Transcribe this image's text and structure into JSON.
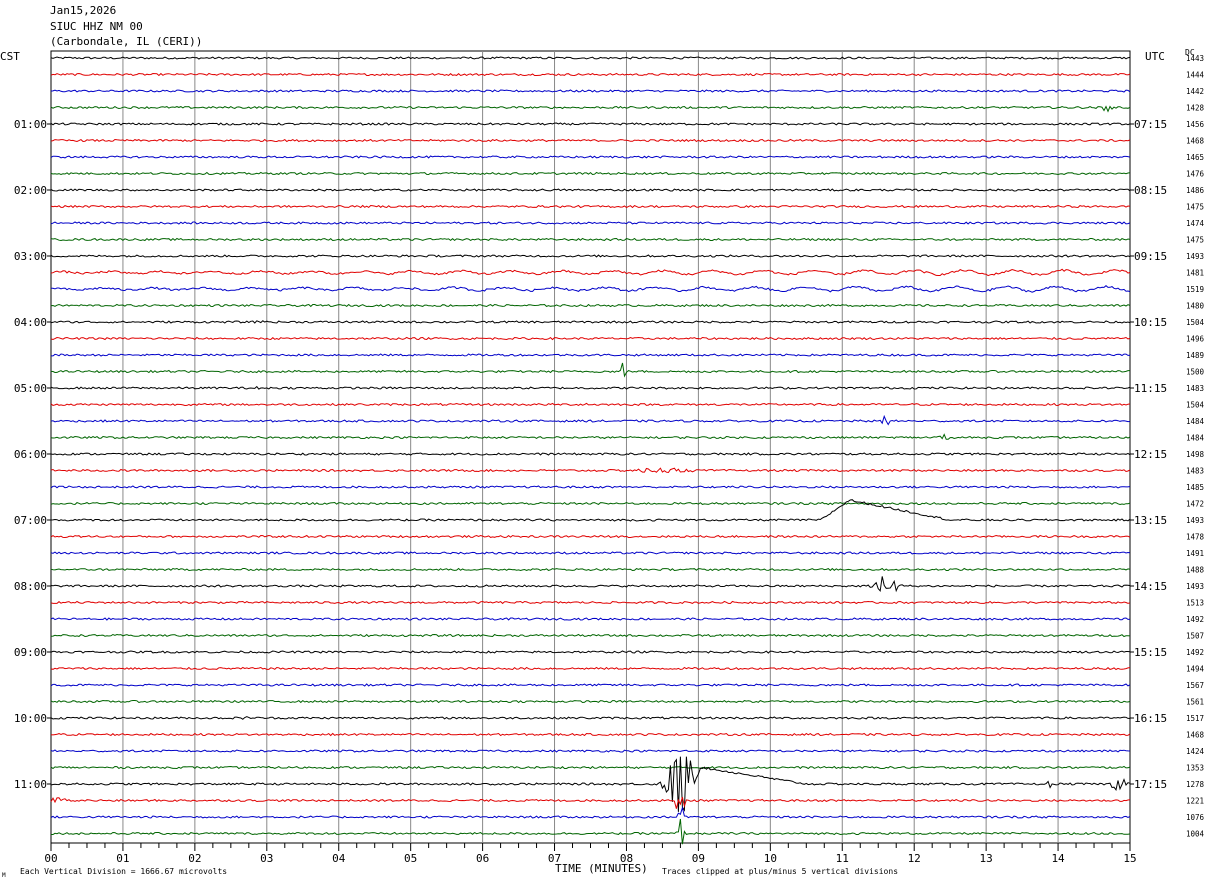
{
  "header": {
    "date": "Jan15,2026",
    "station": "SIUC HHZ NM 00",
    "location": "(Carbondale, IL (CERI))"
  },
  "left_axis_title": "CST",
  "right_axis_title": "UTC",
  "dc_title": "DC",
  "footer": {
    "scale_note": "Each Vertical Division = 1666.67 microvolts",
    "xlabel": "TIME (MINUTES)",
    "clip_note": "Traces clipped at plus/minus 5 vertical divisions",
    "corner_mark": "M"
  },
  "colors": {
    "trace_cycle": [
      "#000000",
      "#e00000",
      "#0000c8",
      "#006400"
    ],
    "grid": "#888888"
  },
  "chart_data": {
    "type": "line",
    "xlabel": "TIME (MINUTES)",
    "xlim": [
      0,
      15
    ],
    "x_ticks": [
      "00",
      "01",
      "02",
      "03",
      "04",
      "05",
      "06",
      "07",
      "08",
      "09",
      "10",
      "11",
      "12",
      "13",
      "14",
      "15"
    ],
    "grid": true,
    "row_count": 48,
    "left_hour_labels": [
      {
        "row": 4,
        "text": "01:00"
      },
      {
        "row": 8,
        "text": "02:00"
      },
      {
        "row": 12,
        "text": "03:00"
      },
      {
        "row": 16,
        "text": "04:00"
      },
      {
        "row": 20,
        "text": "05:00"
      },
      {
        "row": 24,
        "text": "06:00"
      },
      {
        "row": 28,
        "text": "07:00"
      },
      {
        "row": 32,
        "text": "08:00"
      },
      {
        "row": 36,
        "text": "09:00"
      },
      {
        "row": 40,
        "text": "10:00"
      },
      {
        "row": 44,
        "text": "11:00"
      }
    ],
    "right_hour_labels": [
      {
        "row": 4,
        "text": "07:15"
      },
      {
        "row": 8,
        "text": "08:15"
      },
      {
        "row": 12,
        "text": "09:15"
      },
      {
        "row": 16,
        "text": "10:15"
      },
      {
        "row": 20,
        "text": "11:15"
      },
      {
        "row": 24,
        "text": "12:15"
      },
      {
        "row": 28,
        "text": "13:15"
      },
      {
        "row": 32,
        "text": "14:15"
      },
      {
        "row": 36,
        "text": "15:15"
      },
      {
        "row": 40,
        "text": "16:15"
      },
      {
        "row": 44,
        "text": "17:15"
      }
    ],
    "dc_offsets": [
      "1443",
      "1444",
      "1442",
      "1428",
      "1456",
      "1468",
      "1465",
      "1476",
      "1486",
      "1475",
      "1474",
      "1475",
      "1493",
      "1481",
      "1519",
      "1480",
      "1504",
      "1496",
      "1489",
      "1500",
      "1483",
      "1504",
      "1484",
      "1484",
      "1498",
      "1483",
      "1485",
      "1472",
      "1493",
      "1478",
      "1491",
      "1488",
      "1493",
      "1513",
      "1492",
      "1507",
      "1492",
      "1494",
      "1567",
      "1561",
      "1517",
      "1468",
      "1424",
      "1353",
      "1278",
      "1221",
      "1076",
      "1004"
    ],
    "events": [
      {
        "row": 3,
        "minute": 14.7,
        "amp": 6,
        "width": 0.1
      },
      {
        "row": 4,
        "minute": 11.75,
        "amp": 2,
        "width": 0.1
      },
      {
        "row": 16,
        "minute": 2.95,
        "amp": 3,
        "width": 0.12
      },
      {
        "row": 19,
        "minute": 7.95,
        "amp": 14,
        "width": 0.04
      },
      {
        "row": 20,
        "minute": 2.9,
        "amp": 4,
        "width": 0.06
      },
      {
        "row": 21,
        "minute": 7.45,
        "amp": 4,
        "width": 0.04
      },
      {
        "row": 22,
        "minute": 11.6,
        "amp": 8,
        "width": 0.08
      },
      {
        "row": 23,
        "minute": 12.4,
        "amp": 4,
        "width": 0.15
      },
      {
        "row": 25,
        "minute": 8.5,
        "amp": 3,
        "width": 0.5
      },
      {
        "row": 32,
        "minute": 11.6,
        "amp": 14,
        "width": 0.25
      },
      {
        "row": 40,
        "minute": 2.7,
        "amp": 3,
        "width": 0.05
      },
      {
        "row": 44,
        "minute": 8.75,
        "amp": 40,
        "width": 0.3
      },
      {
        "row": 44,
        "minute": 13.9,
        "amp": 5,
        "width": 0.08
      },
      {
        "row": 44,
        "minute": 14.85,
        "amp": 9,
        "width": 0.15
      },
      {
        "row": 45,
        "minute": 0.1,
        "amp": 4,
        "width": 0.2
      },
      {
        "row": 45,
        "minute": 8.75,
        "amp": 30,
        "width": 0.08
      },
      {
        "row": 46,
        "minute": 8.75,
        "amp": 20,
        "width": 0.06
      },
      {
        "row": 47,
        "minute": 8.75,
        "amp": 25,
        "width": 0.06
      }
    ],
    "drifts": [
      {
        "row": 28,
        "start": 10.7,
        "peak": 11.1,
        "end": 12.5,
        "amp": 20
      },
      {
        "row": 44,
        "start": 8.8,
        "peak": 9.0,
        "end": 10.5,
        "amp": 17
      }
    ],
    "long_period_rows": [
      13,
      14
    ]
  }
}
